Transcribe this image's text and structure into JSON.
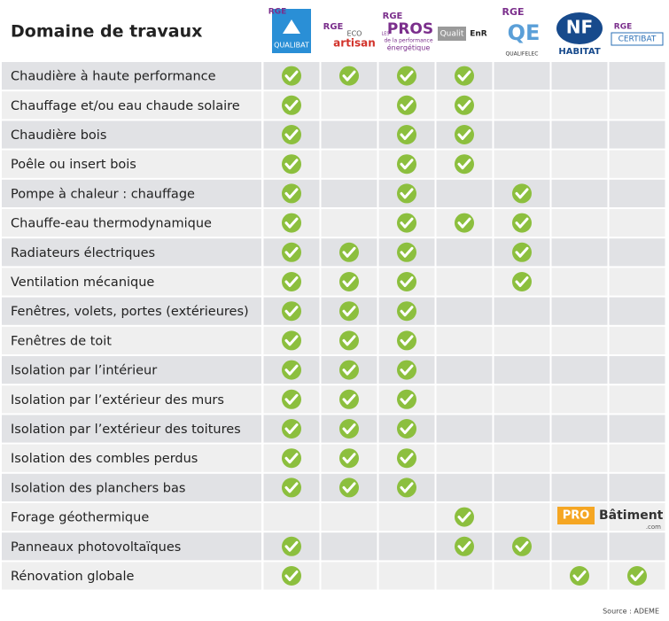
{
  "header": {
    "title": "Domaine de travaux",
    "columns": [
      {
        "texts": [
          "RGE",
          "QUALIBAT"
        ]
      },
      {
        "texts": [
          "RGE",
          "ECO",
          "artisan"
        ]
      },
      {
        "texts": [
          "RGE",
          "LES",
          "PROS",
          "de la performance",
          "énergétique"
        ]
      },
      {
        "texts": [
          "Qualit",
          "EnR"
        ]
      },
      {
        "texts": [
          "RGE",
          "QE",
          "QUALIFELEC"
        ]
      },
      {
        "texts": [
          "NF",
          "HABITAT"
        ]
      },
      {
        "texts": [
          "RGE",
          "CERTIBAT"
        ]
      }
    ]
  },
  "table": {
    "rows": [
      {
        "label": "Chaudière à haute performance",
        "checks": [
          true,
          true,
          true,
          true,
          false,
          false,
          false
        ]
      },
      {
        "label": "Chauffage et/ou eau chaude solaire",
        "checks": [
          true,
          false,
          true,
          true,
          false,
          false,
          false
        ]
      },
      {
        "label": "Chaudière bois",
        "checks": [
          true,
          false,
          true,
          true,
          false,
          false,
          false
        ]
      },
      {
        "label": "Poêle ou insert bois",
        "checks": [
          true,
          false,
          true,
          true,
          false,
          false,
          false
        ]
      },
      {
        "label": "Pompe à chaleur : chauffage",
        "checks": [
          true,
          false,
          true,
          false,
          true,
          false,
          false
        ]
      },
      {
        "label": "Chauffe-eau thermodynamique",
        "checks": [
          true,
          false,
          true,
          true,
          true,
          false,
          false
        ]
      },
      {
        "label": "Radiateurs électriques",
        "checks": [
          true,
          true,
          true,
          false,
          true,
          false,
          false
        ]
      },
      {
        "label": "Ventilation mécanique",
        "checks": [
          true,
          true,
          true,
          false,
          true,
          false,
          false
        ]
      },
      {
        "label": "Fenêtres, volets, portes (extérieures)",
        "checks": [
          true,
          true,
          true,
          false,
          false,
          false,
          false
        ]
      },
      {
        "label": "Fenêtres de toit",
        "checks": [
          true,
          true,
          true,
          false,
          false,
          false,
          false
        ]
      },
      {
        "label": "Isolation par l’intérieur",
        "checks": [
          true,
          true,
          true,
          false,
          false,
          false,
          false
        ]
      },
      {
        "label": "Isolation par l’extérieur des murs",
        "checks": [
          true,
          true,
          true,
          false,
          false,
          false,
          false
        ]
      },
      {
        "label": "Isolation par l’extérieur des toitures",
        "checks": [
          true,
          true,
          true,
          false,
          false,
          false,
          false
        ]
      },
      {
        "label": "Isolation des combles perdus",
        "checks": [
          true,
          true,
          true,
          false,
          false,
          false,
          false
        ]
      },
      {
        "label": "Isolation des planchers bas",
        "checks": [
          true,
          true,
          true,
          false,
          false,
          false,
          false
        ]
      },
      {
        "label": "Forage géothermique",
        "checks": [
          false,
          false,
          false,
          true,
          false,
          false,
          false
        ]
      },
      {
        "label": "Panneaux photovoltaïques",
        "checks": [
          true,
          false,
          false,
          true,
          true,
          false,
          false
        ]
      },
      {
        "label": "Rénovation globale",
        "checks": [
          true,
          false,
          false,
          false,
          false,
          true,
          true
        ]
      }
    ]
  },
  "watermark": {
    "pro": "PRO",
    "name": "Bâtiment",
    "suffix": ".com"
  },
  "footer": {
    "source": "Source : ADEME"
  }
}
